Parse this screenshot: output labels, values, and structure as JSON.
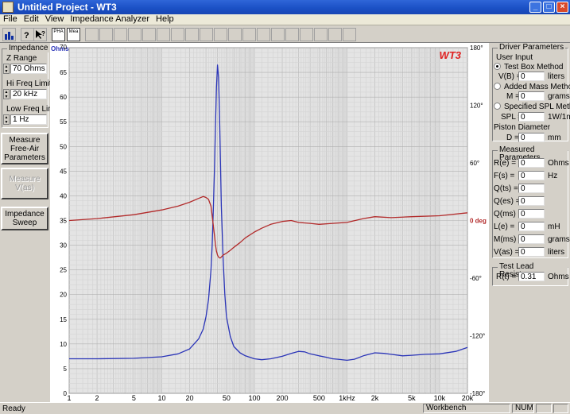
{
  "window": {
    "title": "Untitled Project - WT3",
    "min": "_",
    "max": "□",
    "close": "×"
  },
  "menu": [
    "File",
    "Edit",
    "View",
    "Impedance Analyzer",
    "Help"
  ],
  "toolbar": {
    "pha": "PHA",
    "mea": "Mea"
  },
  "left": {
    "impedance_group": "Impedance",
    "z_range_label": "Z Range",
    "z_range_value": "70 Ohms",
    "hi_freq_label": "Hi Freq Limit",
    "hi_freq_value": "20 kHz",
    "low_freq_label": "Low Freq Limit",
    "low_freq_value": "1 Hz",
    "btn_measure_free_air": "Measure Free-Air Parameters",
    "btn_measure_vas": "Measure V(as)",
    "btn_impedance_sweep": "Impedance Sweep"
  },
  "chart_data": {
    "type": "line",
    "badge": "WT3",
    "left_unit": "Ohms",
    "xscale": "log",
    "xlim": [
      1,
      20000
    ],
    "xticks": [
      1,
      2,
      5,
      10,
      20,
      50,
      100,
      200,
      500,
      1000,
      2000,
      5000,
      10000,
      20000
    ],
    "xtick_labels": [
      "1",
      "2",
      "5",
      "10",
      "20",
      "50",
      "100",
      "200",
      "500",
      "1kHz",
      "2k",
      "5k",
      "10k",
      "20k"
    ],
    "ylim": [
      0,
      70
    ],
    "yticks": [
      0,
      5,
      10,
      15,
      20,
      25,
      30,
      35,
      40,
      45,
      50,
      55,
      60,
      65,
      70
    ],
    "ytick_labels": [
      "0",
      "5",
      "10",
      "15",
      "20",
      "25",
      "30",
      "35",
      "40",
      "45",
      "50",
      "55",
      "60",
      "65",
      "70"
    ],
    "phase_lim": [
      -180,
      180
    ],
    "phase_ticks": [
      180,
      120,
      60,
      0,
      -60,
      -120,
      -180
    ],
    "phase_tick_labels": [
      "180°",
      "120°",
      "60°",
      "0 deg",
      "-60°",
      "-120°",
      "-180°"
    ],
    "grid": true,
    "colors": {
      "impedance": "#2b35b8",
      "phase": "#b22a2a",
      "badge": "#e02020",
      "left_unit": "#2b35b8",
      "phase_unit": "#b22a2a"
    },
    "series": [
      {
        "key": "impedance",
        "axis": "left",
        "x": [
          1,
          2,
          5,
          10,
          15,
          20,
          25,
          28,
          30,
          32,
          34,
          35,
          36,
          37,
          38,
          39,
          40,
          41,
          42,
          43,
          44,
          46,
          48,
          50,
          55,
          60,
          70,
          80,
          100,
          120,
          150,
          200,
          250,
          300,
          350,
          400,
          500,
          600,
          700,
          800,
          1000,
          1200,
          1500,
          2000,
          2500,
          3000,
          4000,
          5000,
          7000,
          10000,
          15000,
          20000
        ],
        "y": [
          7.0,
          7.0,
          7.1,
          7.4,
          8.0,
          9.0,
          11.0,
          13.0,
          15.5,
          19.0,
          25.0,
          30.0,
          37.0,
          45.0,
          54.0,
          62.0,
          66.5,
          64.0,
          57.0,
          47.0,
          38.0,
          27.0,
          20.0,
          15.5,
          11.5,
          9.5,
          8.2,
          7.6,
          7.0,
          6.8,
          7.0,
          7.5,
          8.1,
          8.5,
          8.4,
          8.0,
          7.6,
          7.3,
          7.0,
          6.9,
          6.7,
          6.9,
          7.6,
          8.2,
          8.1,
          7.9,
          7.6,
          7.7,
          7.9,
          8.0,
          8.5,
          9.3
        ]
      },
      {
        "key": "phase",
        "axis": "right",
        "x": [
          1,
          2,
          5,
          10,
          15,
          20,
          25,
          28,
          30,
          32,
          34,
          35,
          36,
          37,
          38,
          39,
          40,
          41,
          42,
          43,
          44,
          46,
          48,
          50,
          55,
          60,
          70,
          80,
          100,
          120,
          150,
          200,
          250,
          300,
          400,
          500,
          700,
          1000,
          1500,
          2000,
          3000,
          5000,
          10000,
          20000
        ],
        "y": [
          0,
          2,
          6,
          11,
          15,
          19,
          23,
          25,
          24,
          22,
          15,
          5,
          -5,
          -15,
          -25,
          -32,
          -36,
          -38,
          -39,
          -39,
          -38,
          -36,
          -35,
          -34,
          -31,
          -28,
          -23,
          -18,
          -12,
          -8,
          -4,
          -1,
          0,
          -2,
          -3,
          -4,
          -3,
          -2,
          2,
          4,
          3,
          4,
          5,
          8
        ]
      }
    ]
  },
  "right": {
    "driver_params_title": "Driver Parameters",
    "user_input": "User Input",
    "radio_test_box": "Test Box Method",
    "vb_label": "V(B) =",
    "vb_value": "0",
    "vb_unit": "liters",
    "radio_added_mass": "Added Mass Method",
    "m_label": "M =",
    "m_value": "0",
    "m_unit": "grams",
    "radio_spl": "Specified SPL Method",
    "spl_label": "SPL =",
    "spl_value": "0",
    "spl_unit": "1W/1m",
    "piston_label": "Piston Diameter",
    "d_label": "D =",
    "d_value": "0",
    "d_unit": "mm",
    "measured_title": "Measured Parameters",
    "params": [
      {
        "label": "R(e) =",
        "value": "0",
        "unit": "Ohms"
      },
      {
        "label": "F(s) =",
        "value": "0",
        "unit": "Hz"
      },
      {
        "label": "Q(ts) =",
        "value": "0",
        "unit": ""
      },
      {
        "label": "Q(es) =",
        "value": "0",
        "unit": ""
      },
      {
        "label": "Q(ms) =",
        "value": "0",
        "unit": ""
      },
      {
        "label": "L(e) =",
        "value": "0",
        "unit": "mH"
      },
      {
        "label": "M(ms) =",
        "value": "0",
        "unit": "grams"
      },
      {
        "label": "V(as) =",
        "value": "0",
        "unit": "liters"
      }
    ],
    "lead_title": "Test Lead Resistance",
    "rt_label": "R(t) =",
    "rt_value": "0.31",
    "rt_unit": "Ohms"
  },
  "status": {
    "left": "Ready",
    "mode": "Workbench",
    "num": "NUM"
  }
}
